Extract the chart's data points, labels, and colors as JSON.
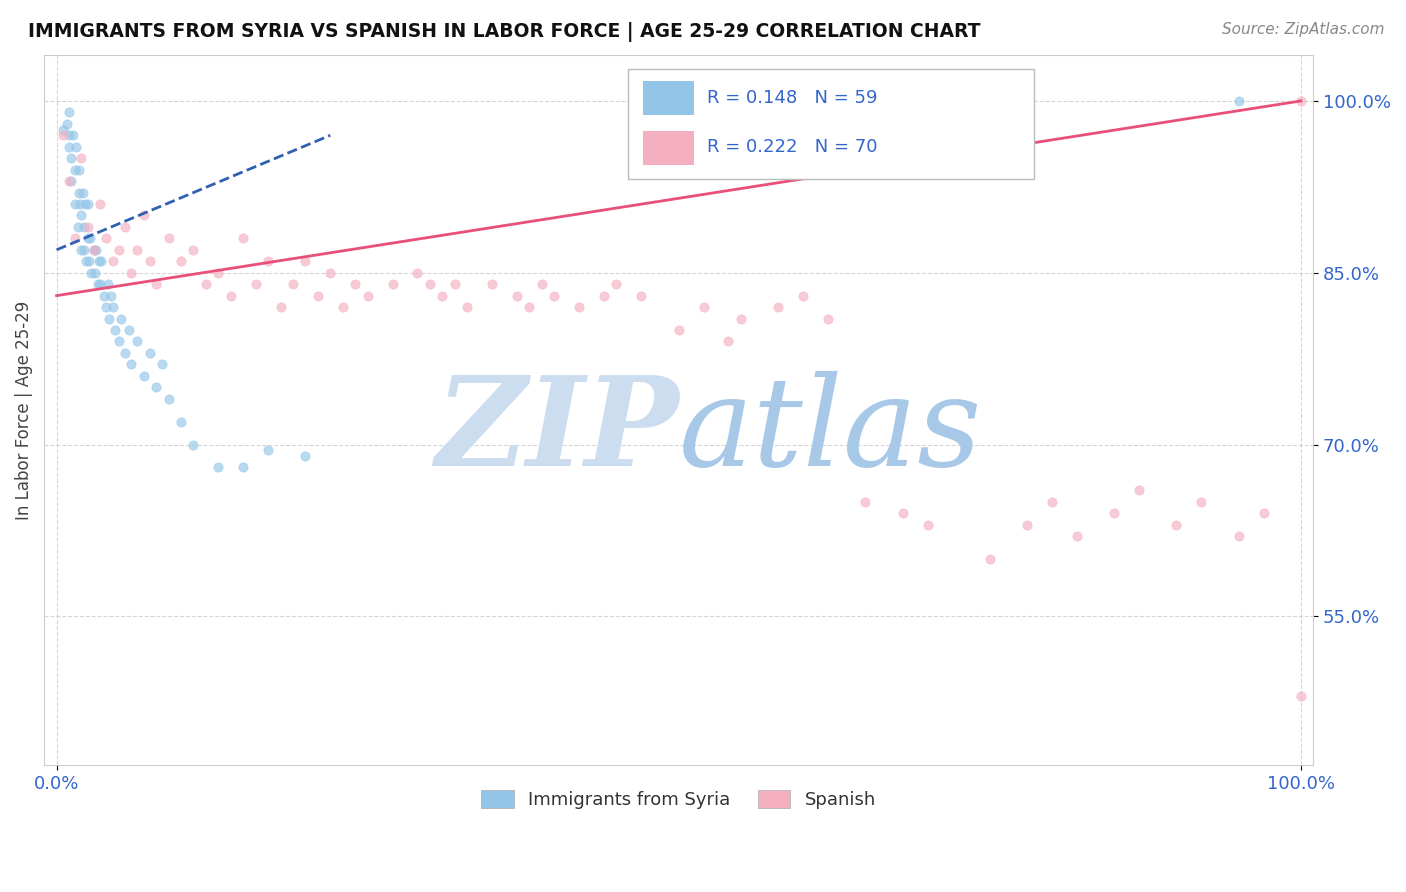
{
  "title": "IMMIGRANTS FROM SYRIA VS SPANISH IN LABOR FORCE | AGE 25-29 CORRELATION CHART",
  "source": "Source: ZipAtlas.com",
  "ylabel": "In Labor Force | Age 25-29",
  "xlim": [
    -0.01,
    1.01
  ],
  "ylim": [
    0.42,
    1.04
  ],
  "xtick_positions": [
    0.0,
    1.0
  ],
  "xticklabels": [
    "0.0%",
    "100.0%"
  ],
  "ytick_positions": [
    0.55,
    0.7,
    0.85,
    1.0
  ],
  "ytick_labels": [
    "55.0%",
    "70.0%",
    "85.0%",
    "100.0%"
  ],
  "R_syria": 0.148,
  "N_syria": 59,
  "R_spanish": 0.222,
  "N_spanish": 70,
  "blue_color": "#93c5e8",
  "pink_color": "#f4afc0",
  "blue_line_color": "#3060b0",
  "pink_line_color": "#e8507a",
  "watermark_color": "#ccddf0",
  "legend_text_color": "#3366cc",
  "dot_size": 45,
  "dot_alpha": 0.65,
  "syria_x": [
    0.005,
    0.008,
    0.01,
    0.01,
    0.01,
    0.012,
    0.012,
    0.013,
    0.015,
    0.015,
    0.016,
    0.017,
    0.018,
    0.018,
    0.019,
    0.02,
    0.02,
    0.021,
    0.022,
    0.022,
    0.023,
    0.024,
    0.025,
    0.025,
    0.026,
    0.027,
    0.028,
    0.03,
    0.031,
    0.032,
    0.033,
    0.034,
    0.035,
    0.036,
    0.038,
    0.04,
    0.041,
    0.042,
    0.044,
    0.045,
    0.047,
    0.05,
    0.052,
    0.055,
    0.058,
    0.06,
    0.065,
    0.07,
    0.075,
    0.08,
    0.085,
    0.09,
    0.1,
    0.11,
    0.13,
    0.15,
    0.17,
    0.2,
    0.95
  ],
  "syria_y": [
    0.975,
    0.98,
    0.96,
    0.97,
    0.99,
    0.93,
    0.95,
    0.97,
    0.91,
    0.94,
    0.96,
    0.89,
    0.92,
    0.94,
    0.91,
    0.87,
    0.9,
    0.92,
    0.87,
    0.89,
    0.91,
    0.86,
    0.88,
    0.91,
    0.86,
    0.88,
    0.85,
    0.87,
    0.85,
    0.87,
    0.84,
    0.86,
    0.84,
    0.86,
    0.83,
    0.82,
    0.84,
    0.81,
    0.83,
    0.82,
    0.8,
    0.79,
    0.81,
    0.78,
    0.8,
    0.77,
    0.79,
    0.76,
    0.78,
    0.75,
    0.77,
    0.74,
    0.72,
    0.7,
    0.68,
    0.68,
    0.695,
    0.69,
    1.0
  ],
  "spanish_x": [
    0.005,
    0.01,
    0.015,
    0.02,
    0.025,
    0.03,
    0.035,
    0.04,
    0.045,
    0.05,
    0.055,
    0.06,
    0.065,
    0.07,
    0.075,
    0.08,
    0.09,
    0.1,
    0.11,
    0.12,
    0.13,
    0.14,
    0.15,
    0.16,
    0.17,
    0.18,
    0.19,
    0.2,
    0.21,
    0.22,
    0.23,
    0.24,
    0.25,
    0.27,
    0.29,
    0.3,
    0.31,
    0.32,
    0.33,
    0.35,
    0.37,
    0.38,
    0.39,
    0.4,
    0.42,
    0.44,
    0.45,
    0.47,
    0.5,
    0.52,
    0.54,
    0.55,
    0.58,
    0.6,
    0.62,
    0.65,
    0.68,
    0.7,
    0.75,
    0.78,
    0.8,
    0.82,
    0.85,
    0.87,
    0.9,
    0.92,
    0.95,
    0.97,
    1.0,
    1.0
  ],
  "spanish_y": [
    0.97,
    0.93,
    0.88,
    0.95,
    0.89,
    0.87,
    0.91,
    0.88,
    0.86,
    0.87,
    0.89,
    0.85,
    0.87,
    0.9,
    0.86,
    0.84,
    0.88,
    0.86,
    0.87,
    0.84,
    0.85,
    0.83,
    0.88,
    0.84,
    0.86,
    0.82,
    0.84,
    0.86,
    0.83,
    0.85,
    0.82,
    0.84,
    0.83,
    0.84,
    0.85,
    0.84,
    0.83,
    0.84,
    0.82,
    0.84,
    0.83,
    0.82,
    0.84,
    0.83,
    0.82,
    0.83,
    0.84,
    0.83,
    0.8,
    0.82,
    0.79,
    0.81,
    0.82,
    0.83,
    0.81,
    0.65,
    0.64,
    0.63,
    0.6,
    0.63,
    0.65,
    0.62,
    0.64,
    0.66,
    0.63,
    0.65,
    0.62,
    0.64,
    0.48,
    1.0
  ],
  "syria_line_x0": 0.0,
  "syria_line_y0": 0.87,
  "syria_line_x1": 0.22,
  "syria_line_y1": 0.97,
  "spanish_line_x0": 0.0,
  "spanish_line_y0": 0.83,
  "spanish_line_x1": 1.0,
  "spanish_line_y1": 1.0
}
